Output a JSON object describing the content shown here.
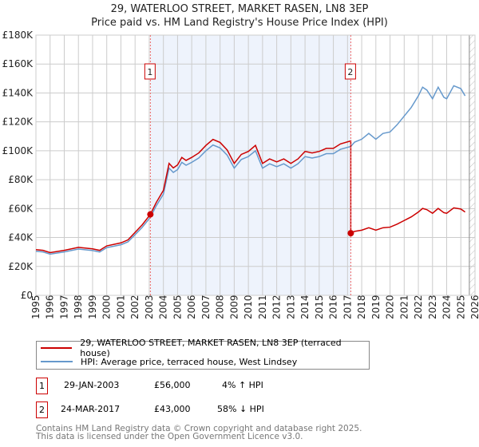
{
  "chart_data": {
    "type": "line",
    "title": "29, WATERLOO STREET, MARKET RASEN, LN8 3EP",
    "subtitle": "Price paid vs. HM Land Registry's House Price Index (HPI)",
    "xlim": [
      1995,
      2026
    ],
    "ylim": [
      0,
      180000
    ],
    "y_ticks": [
      "£0",
      "£20K",
      "£40K",
      "£60K",
      "£80K",
      "£100K",
      "£120K",
      "£140K",
      "£160K",
      "£180K"
    ],
    "x_ticks": [
      "1995",
      "1996",
      "1997",
      "1998",
      "1999",
      "2000",
      "2001",
      "2002",
      "2003",
      "2004",
      "2005",
      "2006",
      "2007",
      "2008",
      "2009",
      "2010",
      "2011",
      "2012",
      "2013",
      "2014",
      "2015",
      "2016",
      "2017",
      "2018",
      "2019",
      "2020",
      "2021",
      "2022",
      "2023",
      "2024",
      "2025",
      "2026"
    ],
    "grid": true,
    "series": [
      {
        "name": "29, WATERLOO STREET, MARKET RASEN, LN8 3EP (terraced house)",
        "color": "#cc0000"
      },
      {
        "name": "HPI: Average price, terraced house, West Lindsey",
        "color": "#6699cc",
        "x": [
          1995,
          1995.5,
          1996,
          1997,
          1998,
          1999,
          1999.5,
          2000,
          2001,
          2001.5,
          2002,
          2002.5,
          2003.08,
          2003.5,
          2004,
          2004.4,
          2004.7,
          2005,
          2005.3,
          2005.6,
          2006,
          2006.5,
          2007,
          2007.5,
          2008,
          2008.5,
          2009,
          2009.5,
          2010,
          2010.5,
          2011,
          2011.5,
          2012,
          2012.5,
          2013,
          2013.5,
          2014,
          2014.5,
          2015,
          2015.5,
          2016,
          2016.5,
          2017.23,
          2017.5,
          2018,
          2018.5,
          2019,
          2019.5,
          2020,
          2020.5,
          2021,
          2021.5,
          2022,
          2022.3,
          2022.6,
          2023,
          2023.4,
          2023.8,
          2024,
          2024.5,
          2025,
          2025.3
        ],
        "y": [
          30500,
          30000,
          28500,
          30000,
          32000,
          31000,
          30000,
          33000,
          35000,
          37000,
          42000,
          47000,
          54000,
          62000,
          70000,
          88000,
          85000,
          87000,
          92000,
          90000,
          92000,
          95000,
          100000,
          104000,
          102000,
          97000,
          88000,
          94000,
          96000,
          100000,
          88000,
          91000,
          89000,
          91000,
          88000,
          91000,
          96000,
          95000,
          96000,
          98000,
          98000,
          101000,
          103000,
          106000,
          108000,
          112000,
          108000,
          112000,
          113000,
          118000,
          124000,
          130000,
          138000,
          144000,
          142000,
          136000,
          144000,
          137000,
          136000,
          145000,
          143000,
          138000
        ]
      }
    ],
    "sales": [
      {
        "label": "1",
        "date": "29-JAN-2003",
        "x": 2003.08,
        "price": 56000,
        "price_text": "£56,000",
        "hpi_text": "4% ↑ HPI"
      },
      {
        "label": "2",
        "date": "24-MAR-2017",
        "x": 2017.23,
        "price": 43000,
        "price_text": "£43,000",
        "hpi_text": "58% ↓ HPI"
      }
    ],
    "colors": {
      "price": "#cc0000",
      "hpi": "#6699cc",
      "shade": "#eef3fc"
    }
  },
  "footer": {
    "line1": "Contains HM Land Registry data © Crown copyright and database right 2025.",
    "line2": "This data is licensed under the Open Government Licence v3.0."
  }
}
